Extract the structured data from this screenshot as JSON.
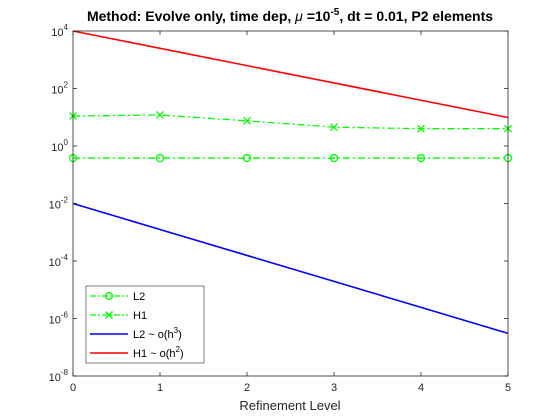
{
  "chart_data": {
    "type": "line",
    "title": {
      "prefix": "Method: Evolve only, time dep, ",
      "mu_symbol": "μ",
      "mu_text": " =10",
      "mu_exp": "-5",
      "suffix": ", dt = 0.01, P2 elements"
    },
    "xlabel": "Refinement Level",
    "ylabel": "",
    "x": [
      0,
      1,
      2,
      3,
      4,
      5
    ],
    "xlim": [
      0,
      5
    ],
    "ylim": [
      1e-08,
      10000.0
    ],
    "y_scale": "log",
    "x_ticks": [
      "0",
      "1",
      "2",
      "3",
      "4",
      "5"
    ],
    "y_ticks": [
      {
        "base": "10",
        "exp": "-8",
        "value": 1e-08
      },
      {
        "base": "10",
        "exp": "-6",
        "value": 1e-06
      },
      {
        "base": "10",
        "exp": "-4",
        "value": 0.0001
      },
      {
        "base": "10",
        "exp": "-2",
        "value": 0.01
      },
      {
        "base": "10",
        "exp": "0",
        "value": 1
      },
      {
        "base": "10",
        "exp": "2",
        "value": 100
      },
      {
        "base": "10",
        "exp": "4",
        "value": 10000
      }
    ],
    "grid": false,
    "legend_position": "bottom-left",
    "series": [
      {
        "name": "L2",
        "label_text": "L2",
        "label_sup": "",
        "label_after": "",
        "color": "#00ff00",
        "dash": "dashdot",
        "marker": "circle",
        "values": [
          0.38,
          0.38,
          0.38,
          0.38,
          0.38,
          0.38
        ]
      },
      {
        "name": "H1",
        "label_text": "H1",
        "label_sup": "",
        "label_after": "",
        "color": "#00ff00",
        "dash": "dashdot",
        "marker": "x",
        "values": [
          11,
          12,
          7.5,
          4.5,
          4.0,
          4.0
        ]
      },
      {
        "name": "L2 ~ o(h3)",
        "label_text": "L2 ~ o(h",
        "label_sup": "3",
        "label_after": ")",
        "color": "#0000ff",
        "dash": "solid",
        "marker": "none",
        "values": [
          0.01,
          0.00125,
          0.000156,
          1.95e-05,
          2.44e-06,
          3.05e-07
        ]
      },
      {
        "name": "H1 ~ o(h2)",
        "label_text": "H1 ~ o(h",
        "label_sup": "2",
        "label_after": ")",
        "color": "#ff0000",
        "dash": "solid",
        "marker": "none",
        "values": [
          10000,
          2500,
          625,
          156,
          39,
          9.8
        ]
      }
    ]
  }
}
